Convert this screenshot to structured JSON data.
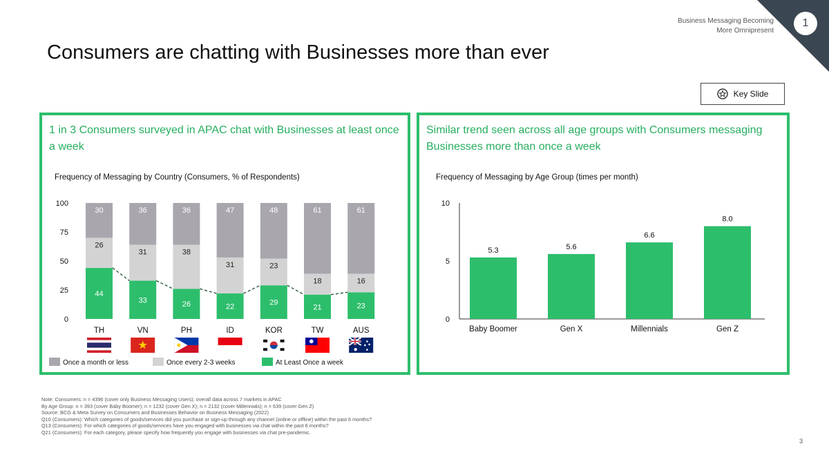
{
  "header": {
    "section_line1": "Business Messaging Becoming",
    "section_line2": "More Omnipresent",
    "section_number": "1",
    "title": "Consumers are chatting with Businesses more than ever",
    "key_slide_label": "Key Slide"
  },
  "left_panel": {
    "heading": "1 in 3 Consumers surveyed in APAC chat with Businesses at least once a week",
    "chart_title": "Frequency of Messaging by Country (Consumers, % of Respondents)"
  },
  "right_panel": {
    "heading": "Similar trend seen across all age groups with Consumers messaging Businesses more than once a week",
    "chart_title": "Frequency of Messaging by Age Group (times per month)"
  },
  "chart_data": [
    {
      "type": "bar",
      "stacked": true,
      "title": "Frequency of Messaging by Country (Consumers, % of Respondents)",
      "categories": [
        "TH",
        "VN",
        "PH",
        "ID",
        "KOR",
        "TW",
        "AUS"
      ],
      "flags": [
        "thailand-flag",
        "vietnam-flag",
        "philippines-flag",
        "indonesia-flag",
        "south-korea-flag",
        "taiwan-flag",
        "australia-flag"
      ],
      "series": [
        {
          "name": "At Least Once a week",
          "color": "#2dbe6c",
          "values": [
            44,
            33,
            26,
            22,
            29,
            21,
            23
          ]
        },
        {
          "name": "Once every 2-3 weeks",
          "color": "#d3d3d3",
          "values": [
            26,
            31,
            38,
            31,
            23,
            18,
            16
          ]
        },
        {
          "name": "Once a month or less",
          "color": "#a9a6ae",
          "values": [
            30,
            36,
            36,
            47,
            48,
            61,
            61
          ]
        }
      ],
      "trend_line": "At Least Once a week",
      "ylim": [
        0,
        100
      ],
      "yticks": [
        0,
        25,
        50,
        75,
        100
      ],
      "legend_position": "bottom",
      "legend_order": [
        "Once a month or less",
        "Once every 2-3 weeks",
        "At Least Once a week"
      ],
      "grid": false
    },
    {
      "type": "bar",
      "title": "Frequency of Messaging by Age Group (times per month)",
      "categories": [
        "Baby Boomer",
        "Gen X",
        "Millennials",
        "Gen Z"
      ],
      "values": [
        5.3,
        5.6,
        6.6,
        8.0
      ],
      "value_labels": [
        "5.3",
        "5.6",
        "6.6",
        "8.0"
      ],
      "color": "#2dbe6c",
      "ylim": [
        0,
        10
      ],
      "yticks": [
        0,
        5,
        10
      ],
      "grid": false
    }
  ],
  "footnotes": [
    "Note: Consumers: n = 4396 (cover only Business Messaging Users); overall data across 7 markets in APAC",
    "By Age Group: n = 393 (cover Baby Boomer); n = 1232 (cover Gen X); n = 2132 (cover Millennials); n = 639 (cover Gen Z)",
    "Source: BCG & Meta Survey on Consumers and Businesses Behavior on Business Messaging (2022)",
    "Q10 (Consumers): Which categories of goods/services did you purchase or sign-up through any channel (online or offline) within the past 6 months?",
    "Q13 (Consumers): For which categories of goods/services have you engaged with businesses via chat within the past 6 months?",
    "Q21 (Consumers): For each category, please specify how frequently you engage with businesses via chat pre-pandemic."
  ],
  "page_number": "3",
  "colors": {
    "accent": "#2dbe6c",
    "corner": "#3a4753"
  },
  "icons": {
    "key_slide": "star-badge-icon"
  }
}
